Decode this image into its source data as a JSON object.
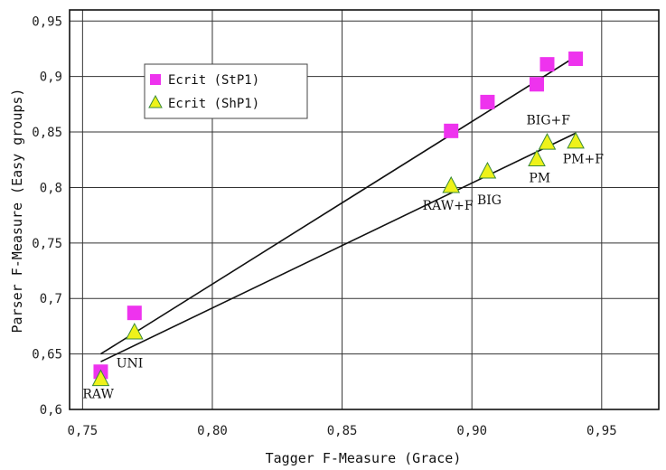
{
  "chart_data": {
    "type": "scatter",
    "xlabel": "Tagger F-Measure (Grace)",
    "ylabel": "Parser F-Measure (Easy groups)",
    "xlim": [
      0.745,
      0.972
    ],
    "ylim": [
      0.6,
      0.96
    ],
    "x_ticks": [
      0.75,
      0.8,
      0.85,
      0.9,
      0.95
    ],
    "x_tick_labels": [
      "0,75",
      "0,80",
      "0,85",
      "0,90",
      "0,95"
    ],
    "y_ticks": [
      0.6,
      0.65,
      0.7,
      0.75,
      0.8,
      0.85,
      0.9,
      0.95
    ],
    "y_tick_labels": [
      "0,6",
      "0,65",
      "0,7",
      "0,75",
      "0,8",
      "0,85",
      "0,9",
      "0,95"
    ],
    "grid": true,
    "legend_position": "top-left",
    "series": [
      {
        "name": "Ecrit (StP1)",
        "marker": "square",
        "color": "#ee33ee",
        "points": [
          {
            "x": 0.757,
            "y": 0.634
          },
          {
            "x": 0.77,
            "y": 0.687
          },
          {
            "x": 0.892,
            "y": 0.851
          },
          {
            "x": 0.906,
            "y": 0.877
          },
          {
            "x": 0.925,
            "y": 0.893
          },
          {
            "x": 0.929,
            "y": 0.911
          },
          {
            "x": 0.94,
            "y": 0.916
          }
        ],
        "trendline": [
          {
            "x": 0.757,
            "y": 0.65
          },
          {
            "x": 0.94,
            "y": 0.918
          }
        ]
      },
      {
        "name": "Ecrit (ShP1)",
        "marker": "triangle",
        "color": "#eef21a",
        "points": [
          {
            "x": 0.757,
            "y": 0.628
          },
          {
            "x": 0.77,
            "y": 0.67
          },
          {
            "x": 0.892,
            "y": 0.802
          },
          {
            "x": 0.906,
            "y": 0.815
          },
          {
            "x": 0.925,
            "y": 0.826
          },
          {
            "x": 0.929,
            "y": 0.841
          },
          {
            "x": 0.94,
            "y": 0.842
          }
        ],
        "trendline": [
          {
            "x": 0.757,
            "y": 0.643
          },
          {
            "x": 0.94,
            "y": 0.849
          }
        ]
      }
    ],
    "annotations": [
      {
        "text": "UNI",
        "x": 0.763,
        "y": 0.638
      },
      {
        "text": "RAW",
        "x": 0.75,
        "y": 0.61
      },
      {
        "text": "RAW+F",
        "x": 0.881,
        "y": 0.78
      },
      {
        "text": "BIG",
        "x": 0.902,
        "y": 0.785
      },
      {
        "text": "PM",
        "x": 0.922,
        "y": 0.805
      },
      {
        "text": "BIG+F",
        "x": 0.921,
        "y": 0.857
      },
      {
        "text": "PM+F",
        "x": 0.935,
        "y": 0.822
      }
    ]
  }
}
